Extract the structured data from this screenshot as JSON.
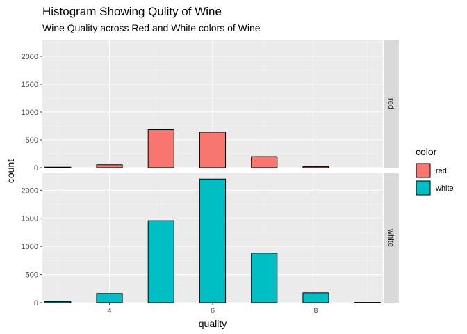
{
  "chart_data": {
    "type": "bar",
    "title": "Histogram Showing Qulity of Wine",
    "subtitle": "Wine Quality across Red and White colors of Wine",
    "xlabel": "quality",
    "ylabel": "count",
    "x_ticks": [
      4,
      6,
      8
    ],
    "y_ticks": [
      0,
      500,
      1000,
      1500,
      2000
    ],
    "ylim": [
      0,
      2300
    ],
    "xlim": [
      2.7,
      9.3
    ],
    "bin_width": 0.5,
    "grid": true,
    "legend_title": "color",
    "legend_position": "right",
    "facets": [
      {
        "label": "red",
        "fill": "#F8766D",
        "bars": [
          {
            "quality": 3,
            "count": 10
          },
          {
            "quality": 4,
            "count": 53
          },
          {
            "quality": 5,
            "count": 681
          },
          {
            "quality": 6,
            "count": 638
          },
          {
            "quality": 7,
            "count": 199
          },
          {
            "quality": 8,
            "count": 18
          },
          {
            "quality": 9,
            "count": 0
          }
        ]
      },
      {
        "label": "white",
        "fill": "#00BFC4",
        "bars": [
          {
            "quality": 3,
            "count": 20
          },
          {
            "quality": 4,
            "count": 163
          },
          {
            "quality": 5,
            "count": 1457
          },
          {
            "quality": 6,
            "count": 2198
          },
          {
            "quality": 7,
            "count": 880
          },
          {
            "quality": 8,
            "count": 175
          },
          {
            "quality": 9,
            "count": 5
          }
        ]
      }
    ],
    "legend": [
      {
        "label": "red",
        "color": "#F8766D"
      },
      {
        "label": "white",
        "color": "#00BFC4"
      }
    ]
  }
}
